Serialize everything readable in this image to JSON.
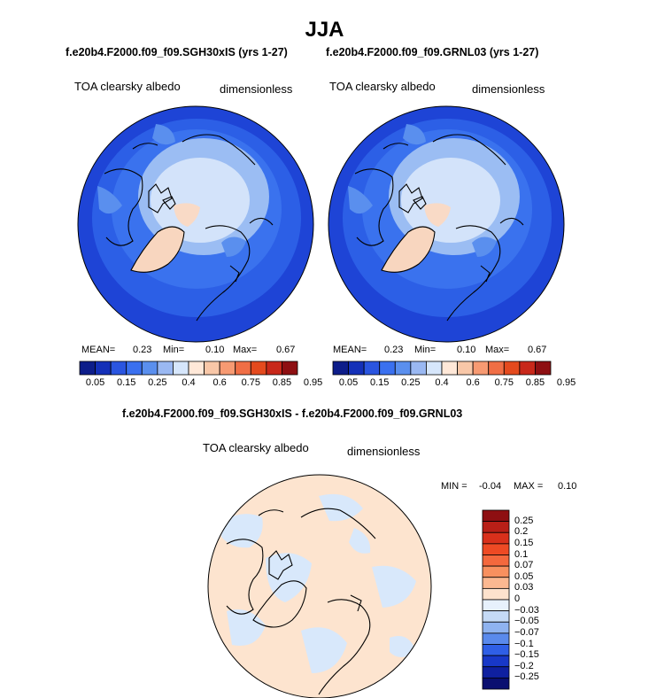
{
  "page": {
    "title": "JJA",
    "panels": [
      {
        "case": "f.e20b4.F2000.f09_f09.SGH30xIS (yrs 1-27)",
        "variable": "TOA clearsky albedo",
        "units": "dimensionless",
        "mean_label": "MEAN=",
        "mean": "0.23",
        "min_label": "Min=",
        "min": "0.10",
        "max_label": "Max=",
        "max": "0.67"
      },
      {
        "case": "f.e20b4.F2000.f09_f09.GRNL03 (yrs 1-27)",
        "variable": "TOA clearsky albedo",
        "units": "dimensionless",
        "mean_label": "MEAN=",
        "mean": "0.23",
        "min_label": "Min=",
        "min": "0.10",
        "max_label": "Max=",
        "max": "0.67"
      }
    ],
    "diff": {
      "title": "f.e20b4.F2000.f09_f09.SGH30xIS - f.e20b4.F2000.f09_f09.GRNL03",
      "variable": "TOA clearsky albedo",
      "units": "dimensionless",
      "min_label": "MIN =",
      "min": "-0.04",
      "max_label": "MAX =",
      "max": "0.10"
    }
  },
  "chart_data": [
    {
      "type": "heatmap",
      "projection": "north-polar-stereographic",
      "title": "TOA clearsky albedo",
      "units": "dimensionless",
      "stats": {
        "mean": 0.23,
        "min": 0.1,
        "max": 0.67
      },
      "colorbar": {
        "orientation": "horizontal",
        "labels": [
          "0.05",
          "0.15",
          "0.25",
          "0.4",
          "0.6",
          "0.75",
          "0.85",
          "0.95"
        ],
        "colors": [
          "#0d1d8a",
          "#1430b8",
          "#2a55e0",
          "#3a70ef",
          "#5a8fee",
          "#9ab8f2",
          "#d6e6fb",
          "#ffe8d8",
          "#f8c7a8",
          "#f79a72",
          "#f06e45",
          "#e44a1e",
          "#c8281a",
          "#8e0f12"
        ]
      }
    },
    {
      "type": "heatmap",
      "projection": "north-polar-stereographic",
      "title": "TOA clearsky albedo",
      "units": "dimensionless",
      "stats": {
        "mean": 0.23,
        "min": 0.1,
        "max": 0.67
      },
      "colorbar": {
        "orientation": "horizontal",
        "labels": [
          "0.05",
          "0.15",
          "0.25",
          "0.4",
          "0.6",
          "0.75",
          "0.85",
          "0.95"
        ],
        "colors": [
          "#0d1d8a",
          "#1430b8",
          "#2a55e0",
          "#3a70ef",
          "#5a8fee",
          "#9ab8f2",
          "#d6e6fb",
          "#ffe8d8",
          "#f8c7a8",
          "#f79a72",
          "#f06e45",
          "#e44a1e",
          "#c8281a",
          "#8e0f12"
        ]
      }
    },
    {
      "type": "heatmap",
      "projection": "north-polar-stereographic",
      "title": "TOA clearsky albedo",
      "units": "dimensionless",
      "stats": {
        "min": -0.04,
        "max": 0.1
      },
      "colorbar": {
        "orientation": "vertical",
        "labels": [
          "0.25",
          "0.2",
          "0.15",
          "0.1",
          "0.07",
          "0.05",
          "0.03",
          "0",
          "-0.03",
          "-0.05",
          "-0.07",
          "-0.1",
          "-0.15",
          "-0.2",
          "-0.25"
        ],
        "colors": [
          "#8e0f12",
          "#b81f17",
          "#d9301b",
          "#ee4a24",
          "#f4683d",
          "#f8905f",
          "#fbb891",
          "#fde2cd",
          "#e7f1fc",
          "#c5daf6",
          "#8fb3f0",
          "#5a8aec",
          "#2f5fe6",
          "#1838c8",
          "#0f20a0",
          "#0a0f70"
        ]
      }
    }
  ]
}
